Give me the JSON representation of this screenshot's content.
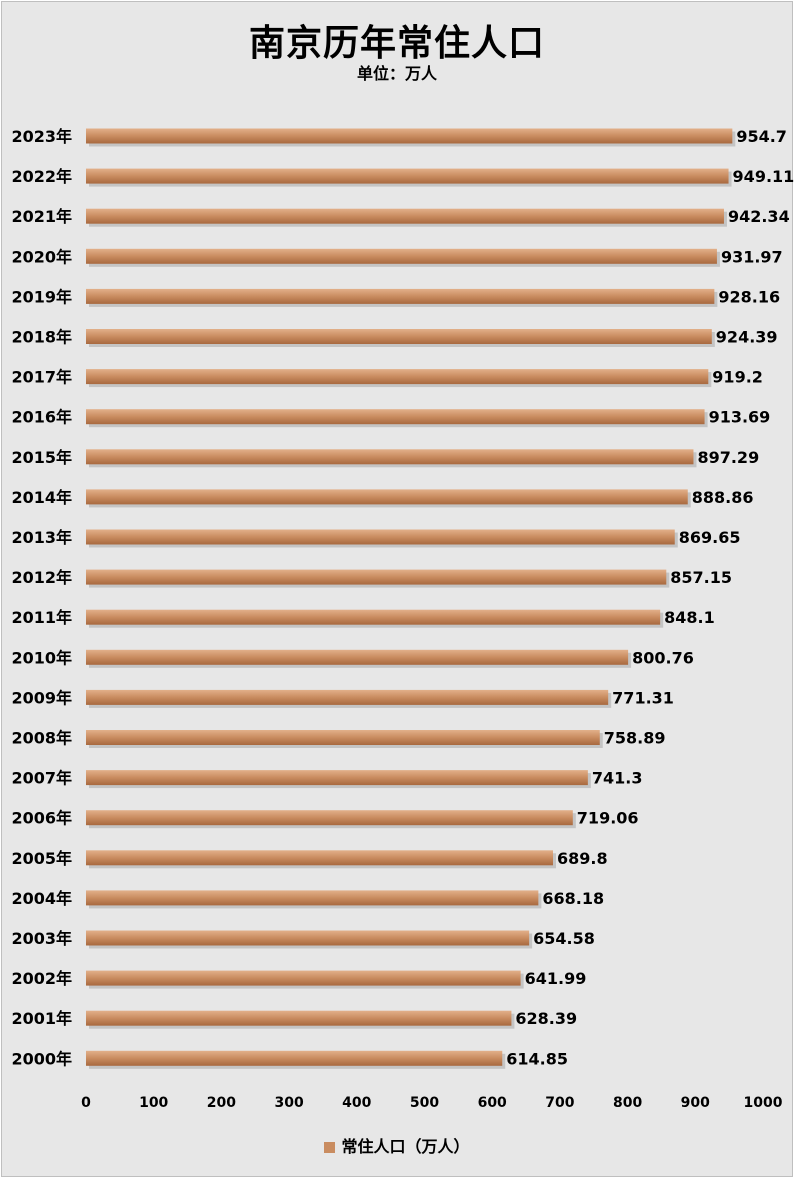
{
  "chart_data": {
    "type": "bar",
    "orientation": "horizontal",
    "title": "南京历年常住人口",
    "subtitle": "单位：万人",
    "categories": [
      "2023年",
      "2022年",
      "2021年",
      "2020年",
      "2019年",
      "2018年",
      "2017年",
      "2016年",
      "2015年",
      "2014年",
      "2013年",
      "2012年",
      "2011年",
      "2010年",
      "2009年",
      "2008年",
      "2007年",
      "2006年",
      "2005年",
      "2004年",
      "2003年",
      "2002年",
      "2001年",
      "2000年"
    ],
    "series": [
      {
        "name": "常住人口（万人）",
        "values": [
          954.7,
          949.11,
          942.34,
          931.97,
          928.16,
          924.39,
          919.2,
          913.69,
          897.29,
          888.86,
          869.65,
          857.15,
          848.1,
          800.76,
          771.31,
          758.89,
          741.3,
          719.06,
          689.8,
          668.18,
          654.58,
          641.99,
          628.39,
          614.85
        ],
        "labels": [
          "954.7",
          "949.11",
          "942.34",
          "931.97",
          "928.16",
          "924.39",
          "919.2",
          "913.69",
          "897.29",
          "888.86",
          "869.65",
          "857.15",
          "848.1",
          "800.76",
          "771.31",
          "758.89",
          "741.3",
          "719.06",
          "689.8",
          "668.18",
          "654.58",
          "641.99",
          "628.39",
          "614.85"
        ]
      }
    ],
    "xlim": [
      0,
      1000
    ],
    "x_ticks": [
      0,
      100,
      200,
      300,
      400,
      500,
      600,
      700,
      800,
      900,
      1000
    ],
    "x_tick_labels": [
      "0",
      "100",
      "200",
      "300",
      "400",
      "500",
      "600",
      "700",
      "800",
      "900",
      "1000"
    ],
    "grid": false,
    "legend": "bottom",
    "bar_color": "#c98c60"
  }
}
